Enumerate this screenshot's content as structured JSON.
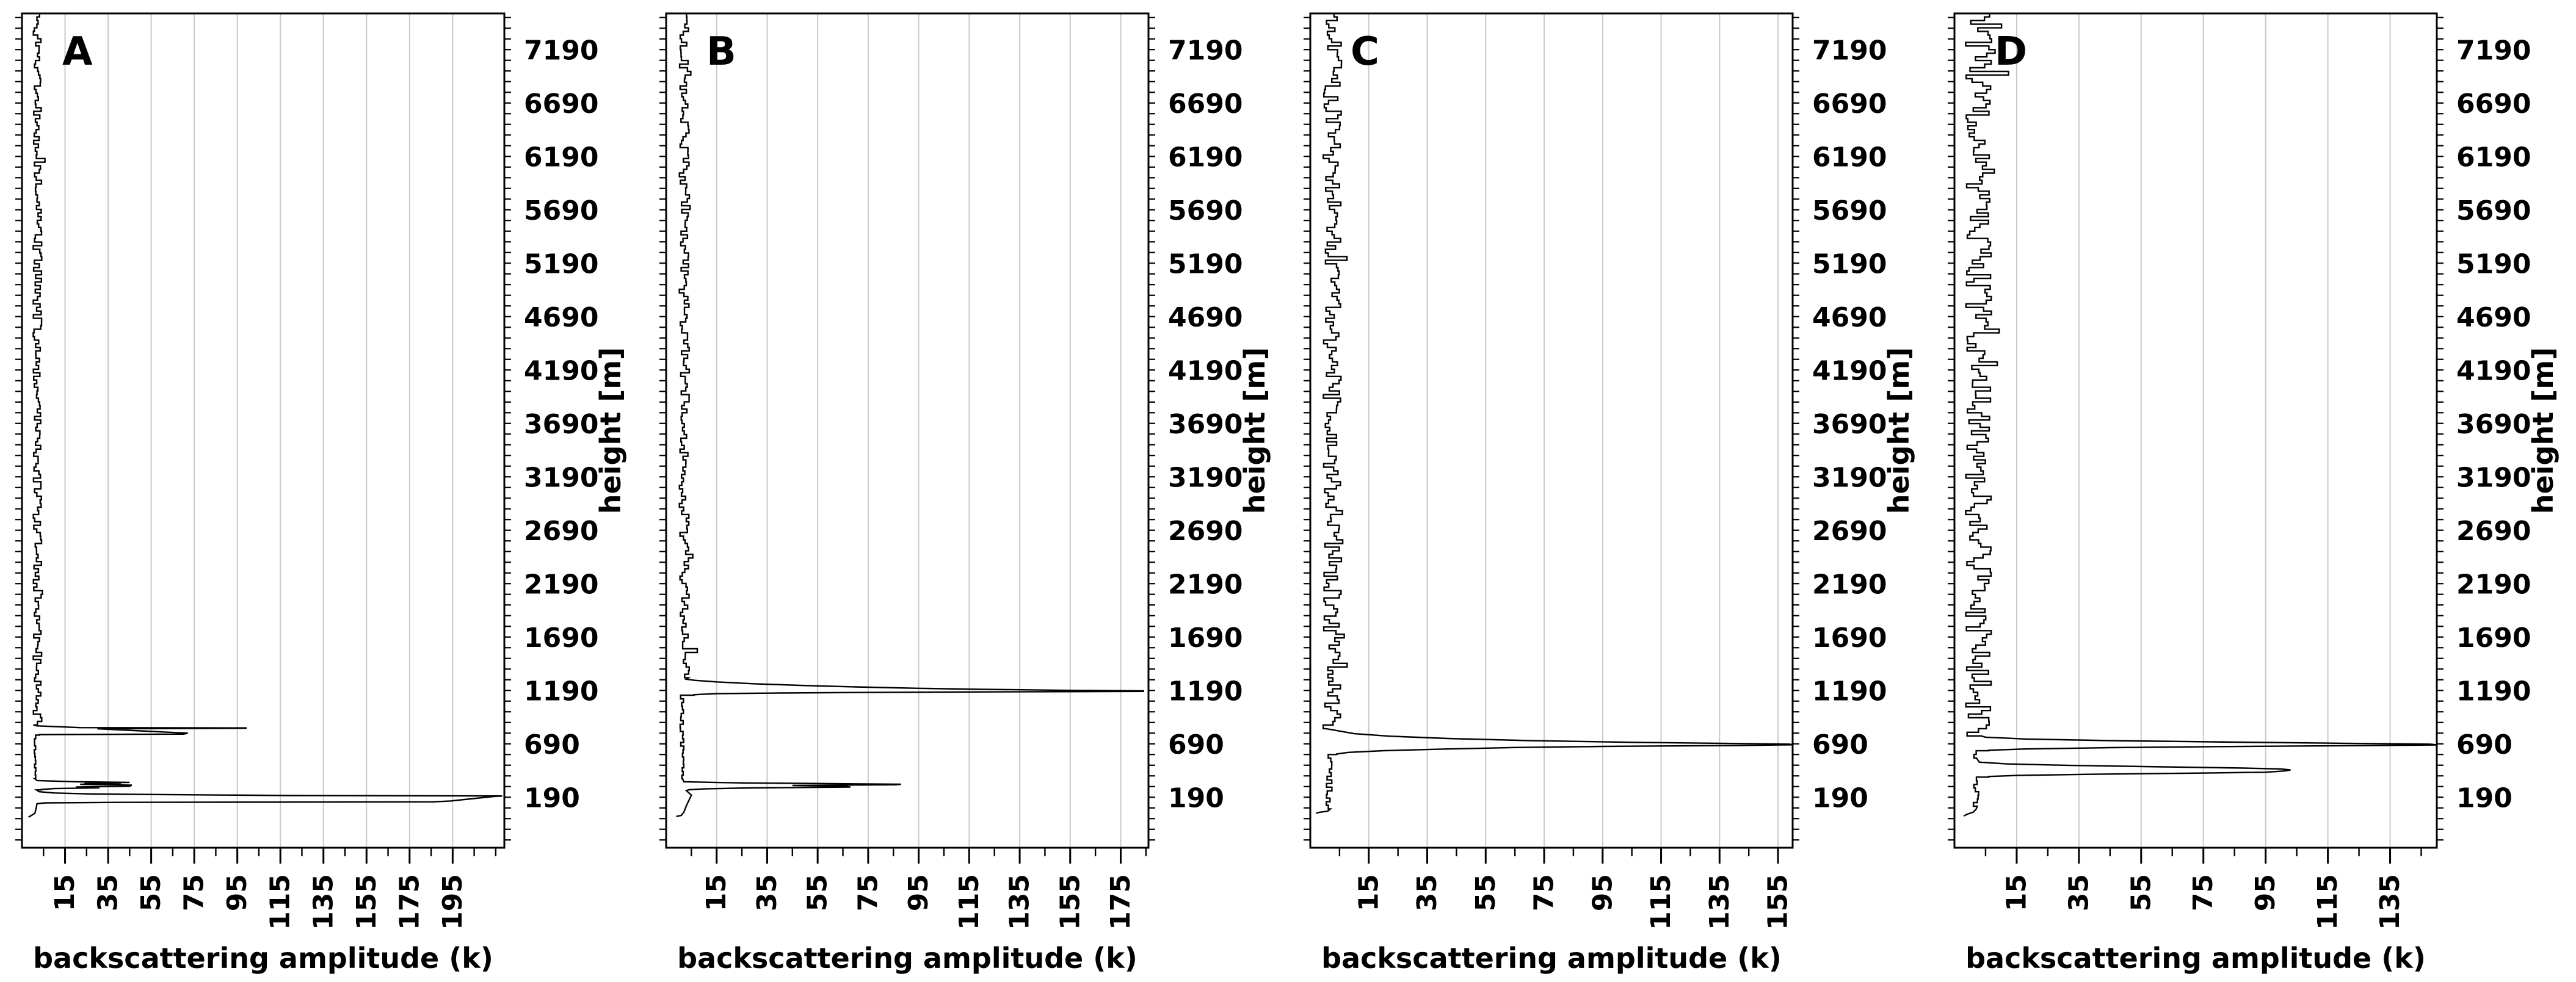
{
  "figure": {
    "xlabel": "backscattering amplitude (k)",
    "ylabel": "height [m]",
    "colors": {
      "trace": "#000000",
      "grid": "#c9c9c9",
      "frame": "#000000",
      "background": "#ffffff",
      "text": "#000000"
    }
  },
  "chart_data": {
    "type": "line",
    "title": "",
    "xlabel": "backscattering amplitude (k)",
    "ylabel": "height [m]",
    "grid": "vertical gridlines at labeled amplitude ticks only",
    "legend_position": "none",
    "y_ticks_m": [
      190,
      690,
      1190,
      1690,
      2190,
      2690,
      3190,
      3690,
      4190,
      4690,
      5190,
      5690,
      6190,
      6690,
      7190
    ],
    "y_minor_step_m": 100,
    "y_range_m": [
      -273,
      7540
    ],
    "panels": [
      {
        "label": "A",
        "x_ticks": [
          15,
          35,
          55,
          75,
          95,
          115,
          135,
          155,
          175,
          195
        ],
        "x_range": [
          -5,
          219
        ],
        "peaks_summary": [
          {
            "height_m": 850,
            "amplitude_k": 99
          },
          {
            "height_m": 790,
            "amplitude_k": 70
          },
          {
            "height_m": 300,
            "amplitude_k": 45
          },
          {
            "height_m": 212,
            "amplitude_k": 218
          }
        ],
        "profile_segments": [
          {
            "type": "noise",
            "from_h": 7540,
            "to_h": 872,
            "base": 2.2,
            "jitter": 2.0,
            "spike": 4
          },
          {
            "type": "line",
            "points": [
              [
                868,
                2
              ],
              [
                852,
                22
              ],
              [
                849,
                99
              ],
              [
                846,
                99
              ],
              [
                841,
                30
              ],
              [
                800,
                72
              ],
              [
                791,
                70
              ],
              [
                786,
                3
              ]
            ]
          },
          {
            "type": "noise",
            "from_h": 782,
            "to_h": 362,
            "base": 1.0,
            "jitter": 0.5,
            "spike": 0
          },
          {
            "type": "line",
            "points": [
              [
                356,
                2
              ],
              [
                345,
                20
              ],
              [
                339,
                45
              ],
              [
                334,
                24
              ],
              [
                328,
                41
              ],
              [
                321,
                22
              ],
              [
                313,
                46
              ],
              [
                303,
                45
              ],
              [
                296,
                20
              ],
              [
                288,
                31
              ],
              [
                281,
                10
              ],
              [
                273,
                4
              ]
            ]
          },
          {
            "type": "noise",
            "from_h": 268,
            "to_h": 256,
            "base": 1.8,
            "jitter": 0.5,
            "spike": 0
          },
          {
            "type": "line",
            "points": [
              [
                252,
                3
              ],
              [
                240,
                10
              ],
              [
                230,
                28
              ],
              [
                216,
                120
              ],
              [
                212,
                218
              ],
              [
                207,
                214
              ],
              [
                165,
                194
              ],
              [
                157,
                186
              ],
              [
                152,
                40
              ],
              [
                147,
                6
              ],
              [
                140,
                2
              ],
              [
                90,
                1.5
              ],
              [
                50,
                1
              ],
              [
                25,
                -1
              ],
              [
                14,
                -2
              ]
            ]
          }
        ]
      },
      {
        "label": "B",
        "x_ticks": [
          15,
          35,
          55,
          75,
          95,
          115,
          135,
          155,
          175
        ],
        "x_range": [
          -5,
          186
        ],
        "peaks_summary": [
          {
            "height_m": 1190,
            "amplitude_k": 184
          },
          {
            "height_m": 320,
            "amplitude_k": 88
          }
        ],
        "profile_segments": [
          {
            "type": "noise",
            "from_h": 7540,
            "to_h": 1312,
            "base": 2.2,
            "jitter": 2.0,
            "spike": 4
          },
          {
            "type": "line",
            "points": [
              [
                1305,
                3
              ],
              [
                1295,
                6
              ],
              [
                1280,
                15
              ],
              [
                1262,
                30
              ],
              [
                1247,
                48
              ],
              [
                1233,
                70
              ],
              [
                1220,
                95
              ],
              [
                1210,
                120
              ],
              [
                1202,
                150
              ],
              [
                1196,
                184
              ],
              [
                1191,
                184
              ],
              [
                1186,
                120
              ],
              [
                1182,
                80
              ],
              [
                1176,
                40
              ],
              [
                1170,
                15
              ],
              [
                1160,
                6
              ]
            ]
          },
          {
            "type": "noise",
            "from_h": 1155,
            "to_h": 352,
            "base": 1.2,
            "jitter": 0.8,
            "spike": 0
          },
          {
            "type": "line",
            "points": [
              [
                344,
                2
              ],
              [
                334,
                25
              ],
              [
                327,
                60
              ],
              [
                322,
                88
              ],
              [
                317,
                86
              ],
              [
                310,
                45
              ],
              [
                302,
                66
              ],
              [
                295,
                68
              ],
              [
                287,
                28
              ],
              [
                278,
                10
              ],
              [
                270,
                4
              ],
              [
                262,
                3
              ],
              [
                220,
                5
              ],
              [
                170,
                4
              ],
              [
                120,
                3
              ],
              [
                60,
                2
              ],
              [
                30,
                1
              ],
              [
                20,
                -1
              ]
            ]
          }
        ]
      },
      {
        "label": "C",
        "x_ticks": [
          15,
          35,
          55,
          75,
          95,
          115,
          135,
          155
        ],
        "x_range": [
          -5,
          160
        ],
        "peaks_summary": [
          {
            "height_m": 690,
            "amplitude_k": 160
          }
        ],
        "profile_segments": [
          {
            "type": "noise",
            "from_h": 7540,
            "to_h": 826,
            "base": 2.6,
            "jitter": 3.2,
            "spike": 6
          },
          {
            "type": "line",
            "points": [
              [
                820,
                5
              ],
              [
                795,
                10
              ],
              [
                772,
                22
              ],
              [
                750,
                42
              ],
              [
                730,
                70
              ],
              [
                714,
                105
              ],
              [
                703,
                140
              ],
              [
                697,
                159
              ],
              [
                691,
                160
              ],
              [
                684,
                140
              ],
              [
                676,
                95
              ],
              [
                666,
                66
              ],
              [
                652,
                42
              ],
              [
                636,
                20
              ],
              [
                620,
                8
              ],
              [
                605,
                4
              ]
            ]
          },
          {
            "type": "noise",
            "from_h": 600,
            "to_h": 80,
            "base": 1.5,
            "jitter": 1.0,
            "spike": 0
          },
          {
            "type": "line",
            "points": [
              [
                70,
                1
              ],
              [
                58,
                -2
              ],
              [
                50,
                -3
              ]
            ]
          }
        ]
      },
      {
        "label": "D",
        "x_ticks": [
          15,
          35,
          55,
          75,
          95,
          115,
          135
        ],
        "x_range": [
          -5,
          150
        ],
        "peaks_summary": [
          {
            "height_m": 690,
            "amplitude_k": 150
          },
          {
            "height_m": 450,
            "amplitude_k": 103
          }
        ],
        "profile_segments": [
          {
            "type": "noise",
            "from_h": 7540,
            "to_h": 768,
            "base": 2.8,
            "jitter": 4.2,
            "spike": 7
          },
          {
            "type": "line",
            "points": [
              [
                762,
                5
              ],
              [
                745,
                18
              ],
              [
                730,
                45
              ],
              [
                716,
                85
              ],
              [
                705,
                120
              ],
              [
                697,
                148
              ],
              [
                690,
                150
              ],
              [
                683,
                125
              ],
              [
                674,
                80
              ],
              [
                664,
                45
              ],
              [
                652,
                18
              ],
              [
                640,
                6
              ]
            ]
          },
          {
            "type": "noise",
            "from_h": 635,
            "to_h": 535,
            "base": 1.5,
            "jitter": 0.8,
            "spike": 0
          },
          {
            "type": "line",
            "points": [
              [
                528,
                3
              ],
              [
                512,
                12
              ],
              [
                498,
                32
              ],
              [
                484,
                62
              ],
              [
                473,
                88
              ],
              [
                464,
                100
              ],
              [
                455,
                103
              ],
              [
                446,
                101
              ],
              [
                434,
                95
              ],
              [
                425,
                70
              ],
              [
                415,
                40
              ],
              [
                405,
                16
              ],
              [
                394,
                6
              ]
            ]
          },
          {
            "type": "noise",
            "from_h": 388,
            "to_h": 100,
            "base": 1.8,
            "jitter": 1.0,
            "spike": 0
          },
          {
            "type": "line",
            "points": [
              [
                90,
                2
              ],
              [
                60,
                1
              ],
              [
                40,
                -1
              ],
              [
                25,
                -2
              ]
            ]
          }
        ]
      }
    ]
  }
}
